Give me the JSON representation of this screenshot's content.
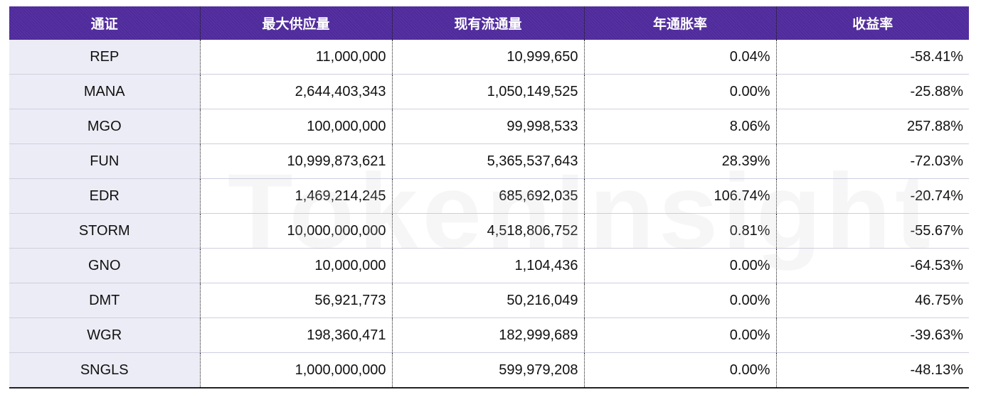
{
  "table": {
    "headers": [
      "通证",
      "最大供应量",
      "现有流通量",
      "年通胀率",
      "收益率"
    ],
    "rows": [
      [
        "REP",
        "11,000,000",
        "10,999,650",
        "0.04%",
        "-58.41%"
      ],
      [
        "MANA",
        "2,644,403,343",
        "1,050,149,525",
        "0.00%",
        "-25.88%"
      ],
      [
        "MGO",
        "100,000,000",
        "99,998,533",
        "8.06%",
        "257.88%"
      ],
      [
        "FUN",
        "10,999,873,621",
        "5,365,537,643",
        "28.39%",
        "-72.03%"
      ],
      [
        "EDR",
        "1,469,214,245",
        "685,692,035",
        "106.74%",
        "-20.74%"
      ],
      [
        "STORM",
        "10,000,000,000",
        "4,518,806,752",
        "0.81%",
        "-55.67%"
      ],
      [
        "GNO",
        "10,000,000",
        "1,104,436",
        "0.00%",
        "-64.53%"
      ],
      [
        "DMT",
        "56,921,773",
        "50,216,049",
        "0.00%",
        "46.75%"
      ],
      [
        "WGR",
        "198,360,471",
        "182,999,689",
        "0.00%",
        "-39.63%"
      ],
      [
        "SNGLS",
        "1,000,000,000",
        "599,979,208",
        "0.00%",
        "-48.13%"
      ]
    ]
  },
  "watermark": "TokenInsight",
  "colors": {
    "header_bg": "#4f2a9c",
    "header_text": "#ffffff",
    "name_col_bg": "#ececf6"
  }
}
